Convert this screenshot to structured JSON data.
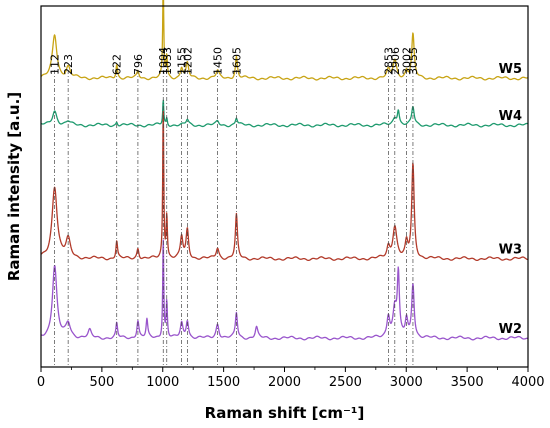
{
  "chart_data": {
    "type": "line",
    "xlabel": "Raman shift [cm⁻¹]",
    "ylabel": "Raman intensity [a.u.]",
    "xlim": [
      0,
      4000
    ],
    "x_ticks": [
      0,
      500,
      1000,
      1500,
      2000,
      2500,
      3000,
      3500,
      4000
    ],
    "y_ticks_shown": false,
    "grid": false,
    "peak_markers": [
      {
        "shift": 112,
        "label": "112"
      },
      {
        "shift": 223,
        "label": "223"
      },
      {
        "shift": 622,
        "label": "622"
      },
      {
        "shift": 796,
        "label": "796"
      },
      {
        "shift": 1004,
        "label": "1004"
      },
      {
        "shift": 1033,
        "label": "1033"
      },
      {
        "shift": 1155,
        "label": "1155"
      },
      {
        "shift": 1202,
        "label": "1202"
      },
      {
        "shift": 1450,
        "label": "1450"
      },
      {
        "shift": 1605,
        "label": "1605"
      },
      {
        "shift": 2853,
        "label": "2853"
      },
      {
        "shift": 2906,
        "label": "2906"
      },
      {
        "shift": 3002,
        "label": "3002"
      },
      {
        "shift": 3055,
        "label": "3055"
      }
    ],
    "series": [
      {
        "name": "W5",
        "color": "#C8A415",
        "baseline": 0.8,
        "peaks": [
          {
            "x": 112,
            "h": 0.12,
            "w": 22
          },
          {
            "x": 223,
            "h": 0.03,
            "w": 20
          },
          {
            "x": 622,
            "h": 0.04,
            "w": 8
          },
          {
            "x": 796,
            "h": 0.02,
            "w": 10
          },
          {
            "x": 1004,
            "h": 0.27,
            "w": 5
          },
          {
            "x": 1033,
            "h": 0.06,
            "w": 6
          },
          {
            "x": 1155,
            "h": 0.03,
            "w": 12
          },
          {
            "x": 1202,
            "h": 0.04,
            "w": 12
          },
          {
            "x": 1450,
            "h": 0.02,
            "w": 14
          },
          {
            "x": 1605,
            "h": 0.06,
            "w": 10
          },
          {
            "x": 2853,
            "h": 0.02,
            "w": 14
          },
          {
            "x": 2906,
            "h": 0.05,
            "w": 18
          },
          {
            "x": 3002,
            "h": 0.02,
            "w": 12
          },
          {
            "x": 3055,
            "h": 0.12,
            "w": 12
          }
        ]
      },
      {
        "name": "W4",
        "color": "#1E9A6E",
        "baseline": 0.67,
        "peaks": [
          {
            "x": 112,
            "h": 0.04,
            "w": 22
          },
          {
            "x": 223,
            "h": 0.01,
            "w": 20
          },
          {
            "x": 622,
            "h": 0.01,
            "w": 8
          },
          {
            "x": 1004,
            "h": 0.07,
            "w": 5
          },
          {
            "x": 1033,
            "h": 0.02,
            "w": 6
          },
          {
            "x": 1202,
            "h": 0.015,
            "w": 12
          },
          {
            "x": 1450,
            "h": 0.01,
            "w": 14
          },
          {
            "x": 1605,
            "h": 0.02,
            "w": 10
          },
          {
            "x": 2906,
            "h": 0.02,
            "w": 18
          },
          {
            "x": 2935,
            "h": 0.04,
            "w": 10
          },
          {
            "x": 3055,
            "h": 0.05,
            "w": 12
          }
        ]
      },
      {
        "name": "W3",
        "color": "#B23A2A",
        "baseline": 0.3,
        "peaks": [
          {
            "x": 112,
            "h": 0.2,
            "w": 25
          },
          {
            "x": 223,
            "h": 0.05,
            "w": 22
          },
          {
            "x": 622,
            "h": 0.05,
            "w": 8
          },
          {
            "x": 796,
            "h": 0.03,
            "w": 10
          },
          {
            "x": 1004,
            "h": 0.42,
            "w": 5
          },
          {
            "x": 1033,
            "h": 0.12,
            "w": 6
          },
          {
            "x": 1155,
            "h": 0.06,
            "w": 12
          },
          {
            "x": 1202,
            "h": 0.08,
            "w": 12
          },
          {
            "x": 1450,
            "h": 0.03,
            "w": 14
          },
          {
            "x": 1605,
            "h": 0.12,
            "w": 10
          },
          {
            "x": 2853,
            "h": 0.03,
            "w": 14
          },
          {
            "x": 2906,
            "h": 0.09,
            "w": 20
          },
          {
            "x": 3002,
            "h": 0.04,
            "w": 12
          },
          {
            "x": 3055,
            "h": 0.26,
            "w": 12
          }
        ]
      },
      {
        "name": "W2",
        "color": "#9955CC",
        "baseline": 0.08,
        "peaks": [
          {
            "x": 112,
            "h": 0.2,
            "w": 22
          },
          {
            "x": 223,
            "h": 0.04,
            "w": 22
          },
          {
            "x": 400,
            "h": 0.02,
            "w": 15
          },
          {
            "x": 622,
            "h": 0.04,
            "w": 8
          },
          {
            "x": 796,
            "h": 0.05,
            "w": 10
          },
          {
            "x": 870,
            "h": 0.05,
            "w": 8
          },
          {
            "x": 1004,
            "h": 0.28,
            "w": 5
          },
          {
            "x": 1033,
            "h": 0.1,
            "w": 6
          },
          {
            "x": 1155,
            "h": 0.04,
            "w": 12
          },
          {
            "x": 1202,
            "h": 0.05,
            "w": 12
          },
          {
            "x": 1450,
            "h": 0.04,
            "w": 14
          },
          {
            "x": 1605,
            "h": 0.07,
            "w": 10
          },
          {
            "x": 1770,
            "h": 0.03,
            "w": 12
          },
          {
            "x": 2853,
            "h": 0.06,
            "w": 14
          },
          {
            "x": 2906,
            "h": 0.08,
            "w": 18
          },
          {
            "x": 2935,
            "h": 0.17,
            "w": 10
          },
          {
            "x": 3002,
            "h": 0.05,
            "w": 12
          },
          {
            "x": 3055,
            "h": 0.15,
            "w": 12
          }
        ]
      }
    ]
  }
}
